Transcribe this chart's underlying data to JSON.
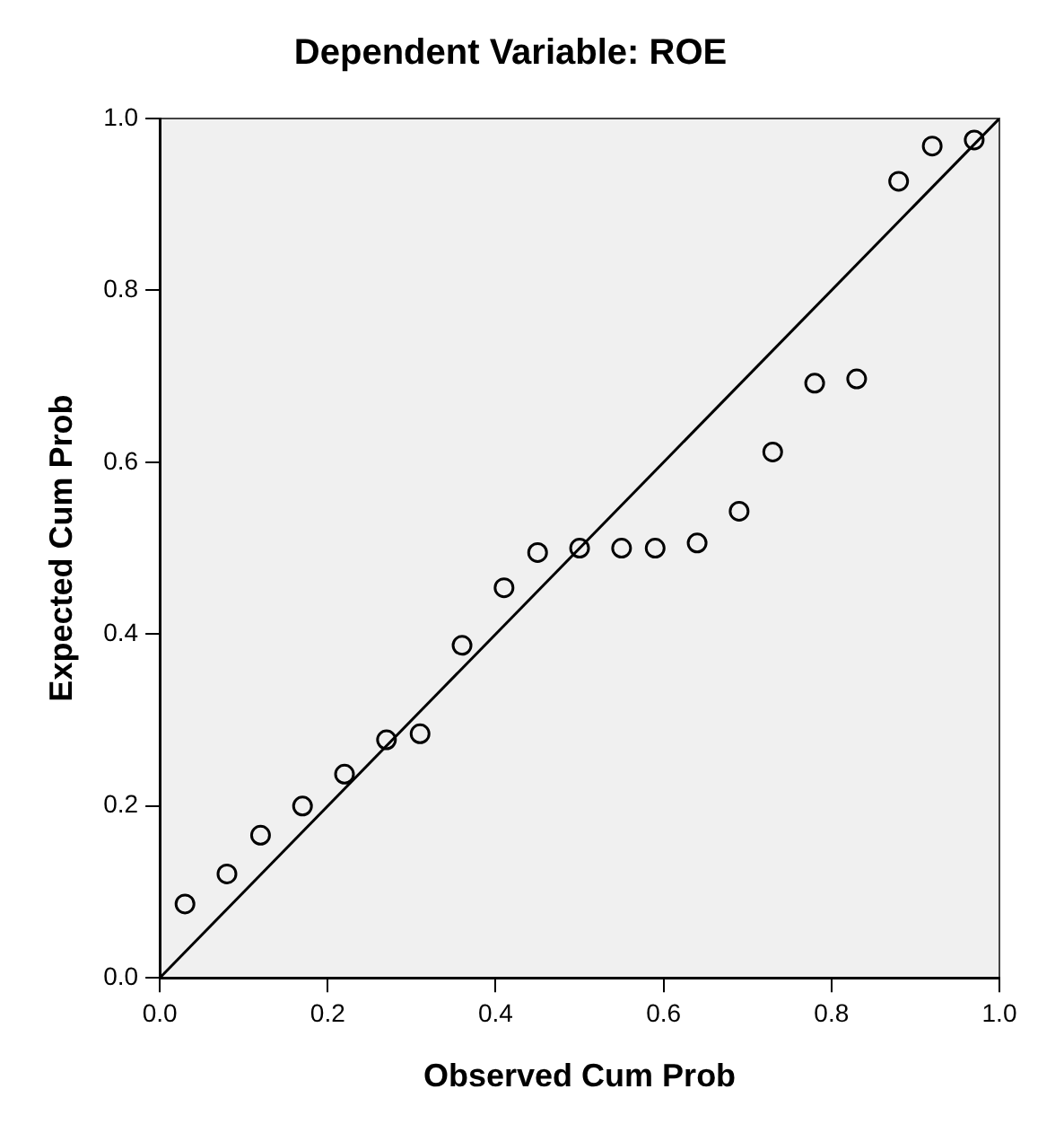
{
  "chart_data": {
    "type": "scatter",
    "title": "Dependent Variable: ROE",
    "xlabel": "Observed Cum Prob",
    "ylabel": "Expected Cum Prob",
    "xlim": [
      0,
      1
    ],
    "ylim": [
      0,
      1
    ],
    "xticks": [
      {
        "value": 0,
        "label": "0.0"
      },
      {
        "value": 0.2,
        "label": "0.2"
      },
      {
        "value": 0.4,
        "label": "0.4"
      },
      {
        "value": 0.6,
        "label": "0.6"
      },
      {
        "value": 0.8,
        "label": "0.8"
      },
      {
        "value": 1,
        "label": "1.0"
      }
    ],
    "yticks": [
      {
        "value": 0,
        "label": "0.0"
      },
      {
        "value": 0.2,
        "label": "0.2"
      },
      {
        "value": 0.4,
        "label": "0.4"
      },
      {
        "value": 0.6,
        "label": "0.6"
      },
      {
        "value": 0.8,
        "label": "0.8"
      },
      {
        "value": 1,
        "label": "1.0"
      }
    ],
    "grid": false,
    "legend": false,
    "marker": "circle",
    "series": [
      {
        "color": "#000000",
        "x": [
          0.03,
          0.08,
          0.12,
          0.17,
          0.22,
          0.27,
          0.31,
          0.36,
          0.41,
          0.45,
          0.5,
          0.55,
          0.59,
          0.64,
          0.69,
          0.73,
          0.78,
          0.83,
          0.88,
          0.92,
          0.97
        ],
        "values": [
          0.086,
          0.121,
          0.166,
          0.2,
          0.237,
          0.277,
          0.284,
          0.387,
          0.454,
          0.495,
          0.5,
          0.5,
          0.5,
          0.506,
          0.543,
          0.612,
          0.692,
          0.697,
          0.927,
          0.968,
          0.975
        ]
      },
      {
        "type": "line",
        "color": "#000000",
        "x": [
          0,
          1
        ],
        "values": [
          0,
          1
        ],
        "line_style": "solid",
        "marker": "none"
      }
    ]
  }
}
